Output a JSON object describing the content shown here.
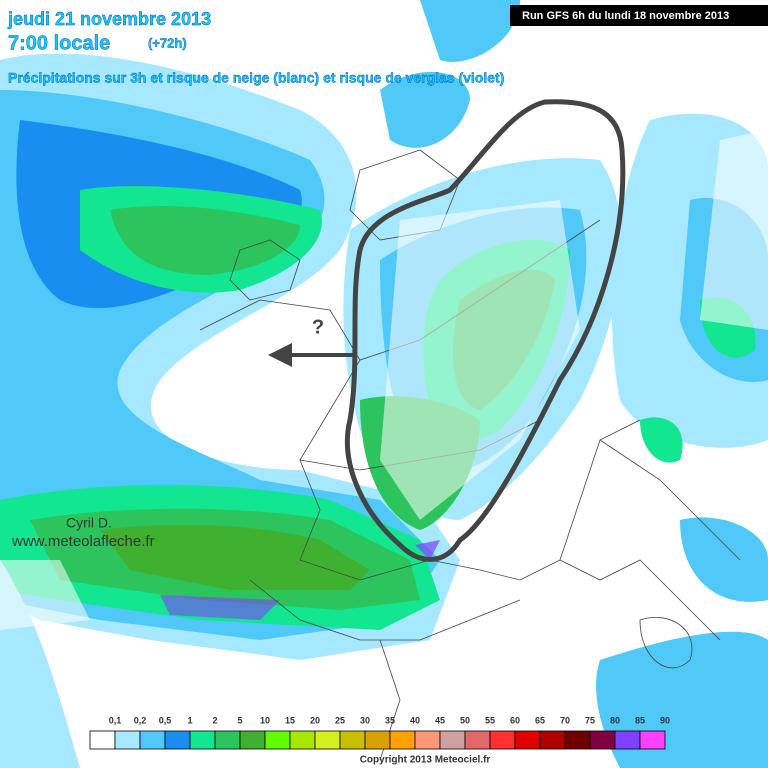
{
  "header": {
    "date": "jeudi 21 novembre 2013",
    "time": "7:00 locale",
    "lead": "(+72h)",
    "subtitle": "Précipitations sur 3h et risque de neige (blanc) et risque de verglas (violet)",
    "run": "Run GFS 6h du lundi 18 novembre 2013"
  },
  "annotations": {
    "author": "Cyril D.",
    "website": "www.meteolafleche.fr",
    "question": "?"
  },
  "legend": {
    "labels": [
      "0,1",
      "0,2",
      "0,5",
      "1",
      "2",
      "5",
      "10",
      "15",
      "20",
      "25",
      "30",
      "35",
      "40",
      "45",
      "50",
      "55",
      "60",
      "65",
      "70",
      "75",
      "80",
      "85",
      "90"
    ],
    "colors": [
      "#ffffff",
      "#a6e8ff",
      "#50c8f8",
      "#1a8ef0",
      "#12e690",
      "#2cc45c",
      "#40b030",
      "#60ff00",
      "#a8e800",
      "#d4f020",
      "#c8c000",
      "#d8a000",
      "#ffa000",
      "#ff9878",
      "#d0a0a0",
      "#e06868",
      "#ff3030",
      "#e00000",
      "#b00000",
      "#700000",
      "#800040",
      "#8040ff",
      "#ff40ff"
    ]
  },
  "footer": {
    "copyright": "Copyright 2013 Meteociel.fr"
  }
}
